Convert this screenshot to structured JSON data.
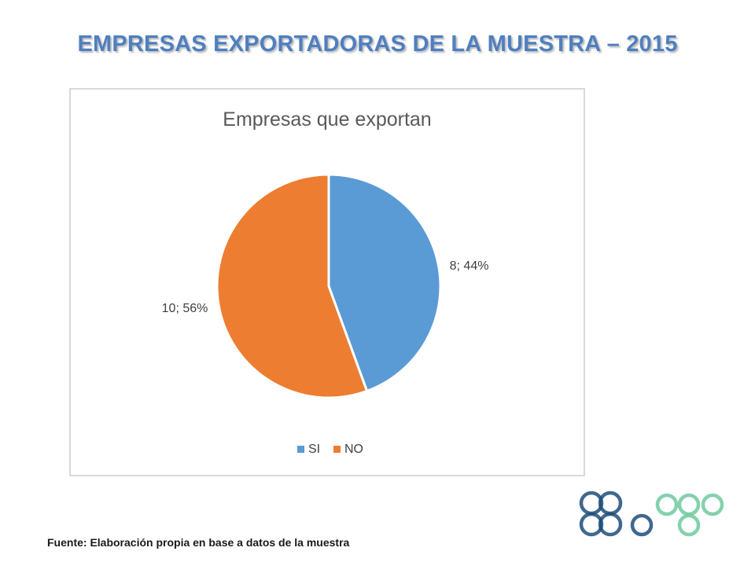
{
  "slide": {
    "title": "EMPRESAS EXPORTADORAS DE LA MUESTRA – 2015",
    "source": "Fuente: Elaboración propia en base a datos de la muestra"
  },
  "colors": {
    "title": "#4f7fc0",
    "si": "#5b9bd5",
    "no": "#ed7d31",
    "logo_blue": "#1f4e79",
    "logo_green": "#70c9a0"
  },
  "logo": {
    "icon": "interlocking-rings-logo-icon"
  },
  "chart_data": {
    "type": "pie",
    "title": "Empresas que exportan",
    "categories": [
      "SI",
      "NO"
    ],
    "values": [
      8,
      10
    ],
    "percents": [
      44,
      56
    ],
    "data_labels": [
      "8; 44%",
      "10; 56%"
    ],
    "legend_position": "bottom"
  }
}
